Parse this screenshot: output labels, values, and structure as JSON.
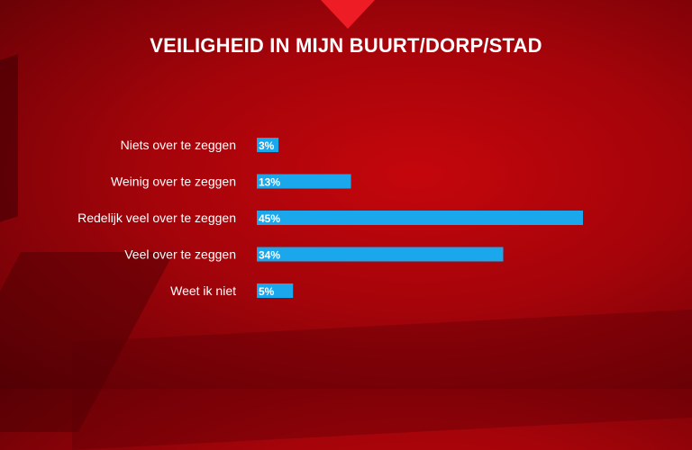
{
  "chart_data": {
    "type": "bar",
    "orientation": "horizontal",
    "title": "VEILIGHEID IN MIJN BUURT/DORP/STAD",
    "categories": [
      "Niets over te zeggen",
      "Weinig over te zeggen",
      "Redelijk veel over te zeggen",
      "Veel over te zeggen",
      "Weet ik niet"
    ],
    "values": [
      3,
      13,
      45,
      34,
      5
    ],
    "value_labels": [
      "3%",
      "13%",
      "45%",
      "34%",
      "5%"
    ],
    "unit": "%",
    "xlim": [
      0,
      45
    ],
    "grid": false,
    "legend": "none",
    "bar_color": "#1aa7ec",
    "label_color": "#ffffff"
  }
}
